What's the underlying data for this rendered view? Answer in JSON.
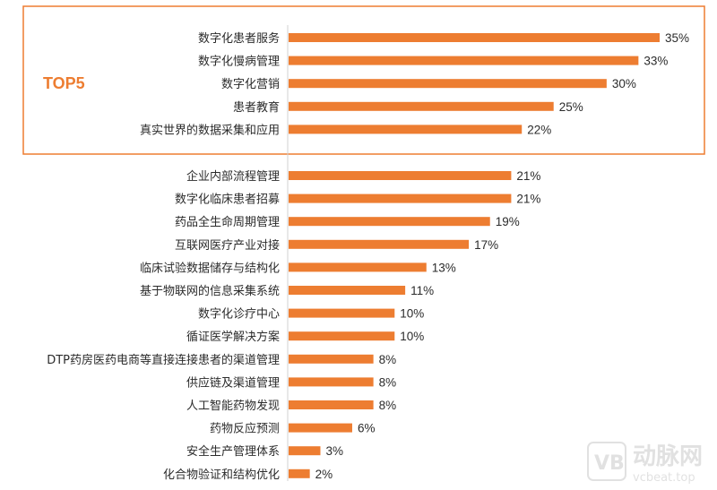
{
  "chart_data": {
    "type": "bar",
    "orientation": "horizontal",
    "categories": [
      "数字化患者服务",
      "数字化慢病管理",
      "数字化营销",
      "患者教育",
      "真实世界的数据采集和应用",
      "企业内部流程管理",
      "数字化临床患者招募",
      "药品全生命周期管理",
      "互联网医疗产业对接",
      "临床试验数据储存与结构化",
      "基于物联网的信息采集系统",
      "数字化诊疗中心",
      "循证医学解决方案",
      "DTP药房医药电商等直接连接患者的渠道管理",
      "供应链及渠道管理",
      "人工智能药物发现",
      "药物反应预测",
      "安全生产管理体系",
      "化合物验证和结构优化"
    ],
    "values": [
      35,
      33,
      30,
      25,
      22,
      21,
      21,
      19,
      17,
      13,
      11,
      10,
      10,
      8,
      8,
      8,
      6,
      3,
      2
    ],
    "value_labels": [
      "35%",
      "33%",
      "30%",
      "25%",
      "22%",
      "21%",
      "21%",
      "19%",
      "17%",
      "13%",
      "11%",
      "10%",
      "10%",
      "8%",
      "8%",
      "8%",
      "6%",
      "3%",
      "2%"
    ],
    "unit": "%",
    "xlim": [
      0,
      35
    ],
    "highlight_label": "TOP5",
    "highlight_count": 5,
    "bar_color": "#ED7D31",
    "highlight_color": "#ED7D31",
    "grid": false,
    "legend": "none"
  },
  "watermark": {
    "logo_text": "动脉网",
    "url": "vcbeat.top"
  }
}
